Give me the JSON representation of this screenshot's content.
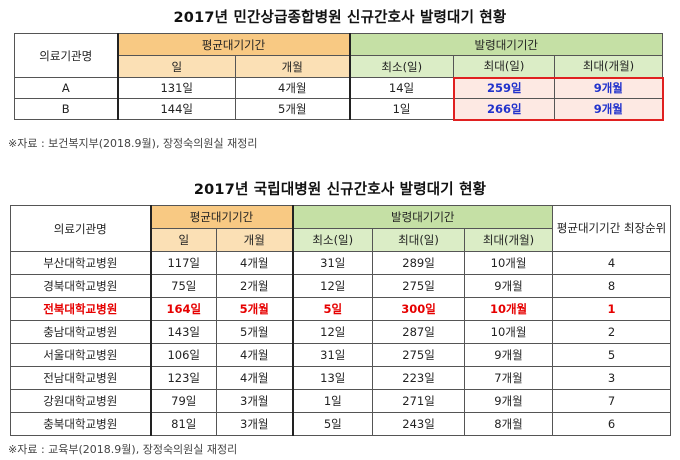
{
  "table1": {
    "title": "2017년 민간상급종합병원 신규간호사 발령대기 현황",
    "header": {
      "institution": "의료기관명",
      "avg_wait": "평균대기기간",
      "appoint_wait": "발령대기기간",
      "day": "일",
      "month": "개월",
      "min_day": "최소(일)",
      "max_day": "최대(일)",
      "max_month": "최대(개월)"
    },
    "rows": [
      {
        "name": "A",
        "avg_day": "131일",
        "avg_month": "4개월",
        "min_day": "14일",
        "max_day": "259일",
        "max_month": "9개월"
      },
      {
        "name": "B",
        "avg_day": "144일",
        "avg_month": "5개월",
        "min_day": "1일",
        "max_day": "266일",
        "max_month": "9개월"
      }
    ],
    "source": "※자료 : 보건복지부(2018.9월), 장정숙의원실 재정리",
    "highlight_color": "#2233cc"
  },
  "table2": {
    "title": "2017년 국립대병원 신규간호사 발령대기 현황",
    "header": {
      "institution": "의료기관명",
      "avg_wait": "평균대기기간",
      "appoint_wait": "발령대기기간",
      "rank": "평균대기기간 최장순위",
      "day": "일",
      "month": "개월",
      "min_day": "최소(일)",
      "max_day": "최대(일)",
      "max_month": "최대(개월)"
    },
    "rows": [
      {
        "name": "부산대학교병원",
        "avg_day": "117일",
        "avg_month": "4개월",
        "min_day": "31일",
        "max_day": "289일",
        "max_month": "10개월",
        "rank": "4"
      },
      {
        "name": "경북대학교병원",
        "avg_day": "75일",
        "avg_month": "2개월",
        "min_day": "12일",
        "max_day": "275일",
        "max_month": "9개월",
        "rank": "8"
      },
      {
        "name": "전북대학교병원",
        "avg_day": "164일",
        "avg_month": "5개월",
        "min_day": "5일",
        "max_day": "300일",
        "max_month": "10개월",
        "rank": "1"
      },
      {
        "name": "충남대학교병원",
        "avg_day": "143일",
        "avg_month": "5개월",
        "min_day": "12일",
        "max_day": "287일",
        "max_month": "10개월",
        "rank": "2"
      },
      {
        "name": "서울대학교병원",
        "avg_day": "106일",
        "avg_month": "4개월",
        "min_day": "31일",
        "max_day": "275일",
        "max_month": "9개월",
        "rank": "5"
      },
      {
        "name": "전남대학교병원",
        "avg_day": "123일",
        "avg_month": "4개월",
        "min_day": "13일",
        "max_day": "223일",
        "max_month": "7개월",
        "rank": "3"
      },
      {
        "name": "강원대학교병원",
        "avg_day": "79일",
        "avg_month": "3개월",
        "min_day": "1일",
        "max_day": "271일",
        "max_month": "9개월",
        "rank": "7"
      },
      {
        "name": "충북대학교병원",
        "avg_day": "81일",
        "avg_month": "3개월",
        "min_day": "5일",
        "max_day": "243일",
        "max_month": "8개월",
        "rank": "6"
      }
    ],
    "highlight_row_index": 2,
    "highlight_color": "#e60000",
    "source": "※자료 : 교육부(2018.9월), 장정숙의원실 재정리"
  }
}
